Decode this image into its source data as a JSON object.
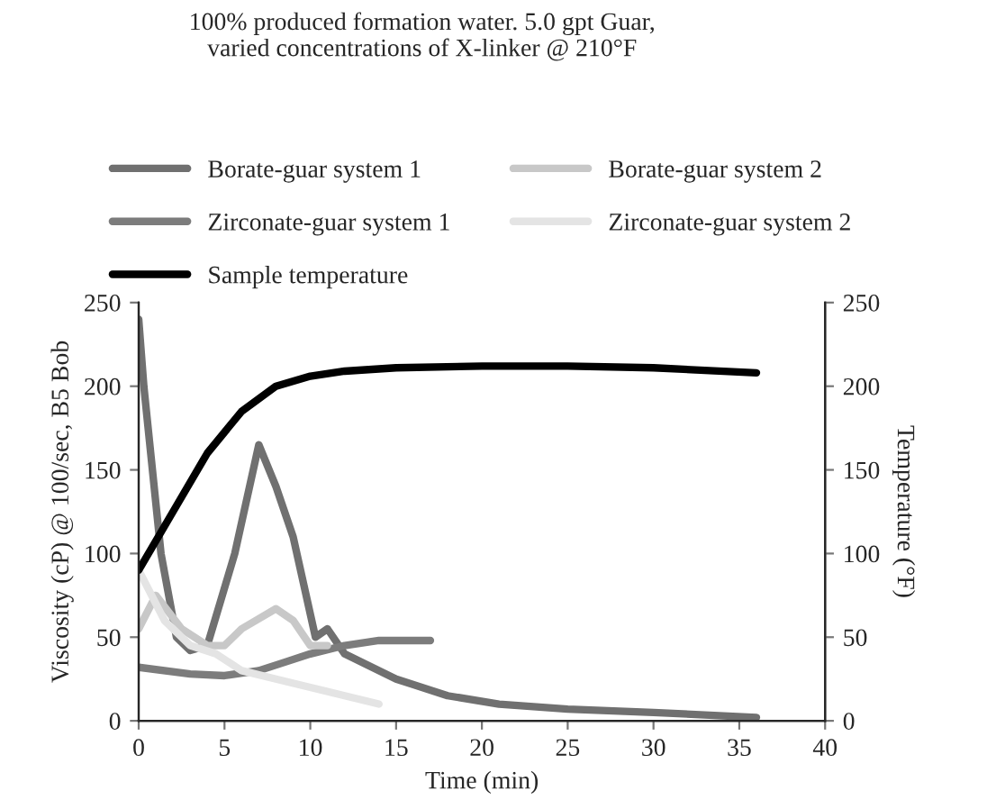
{
  "chart_data": {
    "type": "line",
    "title": "100% produced formation water. 5.0 gpt Guar,\nvaried concentrations of X-linker @ 210°F",
    "xlabel": "Time (min)",
    "ylabel": "Viscosity (cP) @ 100/sec, B5 Bob",
    "y2label": "Temperature (°F)",
    "xlim": [
      0,
      40
    ],
    "xticks": [
      0,
      5,
      10,
      15,
      20,
      25,
      30,
      35,
      40
    ],
    "ylim": [
      0,
      250
    ],
    "yticks": [
      0,
      50,
      100,
      150,
      200,
      250
    ],
    "y2lim": [
      0,
      250
    ],
    "y2ticks": [
      0,
      50,
      100,
      150,
      200,
      250
    ],
    "legend": "top",
    "grid": false,
    "series": [
      {
        "name": "Borate-guar system 1",
        "color": "#707070",
        "x": [
          0,
          0.3,
          1.3,
          2.2,
          3,
          4,
          5.6,
          7,
          8,
          9,
          10.3,
          11,
          12,
          15,
          18,
          21,
          25,
          30,
          36
        ],
        "values": [
          240,
          200,
          100,
          50,
          42,
          45,
          100,
          165,
          140,
          110,
          50,
          55,
          40,
          25,
          15,
          10,
          7,
          5,
          2
        ]
      },
      {
        "name": "Zirconate-guar system 1",
        "color": "#7c7c7c",
        "x": [
          0,
          3,
          5,
          7,
          8.5,
          10,
          12,
          14,
          17
        ],
        "values": [
          32,
          28,
          27,
          30,
          35,
          40,
          45,
          48,
          48
        ]
      },
      {
        "name": "Sample temperature",
        "color": "#000000",
        "axis": "y2",
        "x": [
          0,
          2,
          4,
          6,
          8,
          10,
          12,
          15,
          20,
          25,
          30,
          36
        ],
        "values": [
          90,
          125,
          160,
          185,
          200,
          206,
          209,
          211,
          212,
          212,
          211,
          208
        ]
      },
      {
        "name": "Borate-guar system 2",
        "color": "#c8c8c8",
        "x": [
          0,
          1,
          2.5,
          4,
          5,
          6,
          8,
          9,
          10,
          11
        ],
        "values": [
          55,
          75,
          55,
          45,
          45,
          55,
          67,
          60,
          45,
          45
        ]
      },
      {
        "name": "Zirconate-guar system 2",
        "color": "#e4e4e4",
        "x": [
          0,
          1.5,
          3,
          4.5,
          6,
          8,
          10,
          12,
          14
        ],
        "values": [
          90,
          60,
          45,
          40,
          30,
          25,
          20,
          15,
          10
        ]
      }
    ]
  }
}
